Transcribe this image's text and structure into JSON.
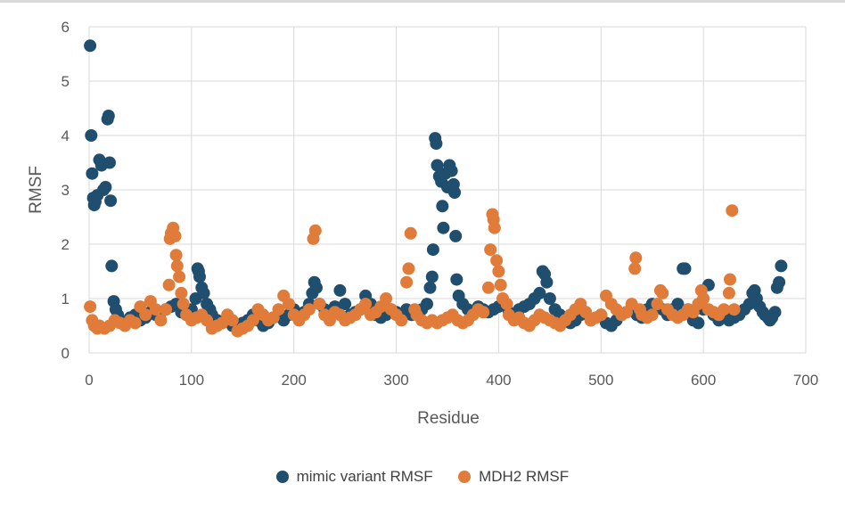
{
  "chart_data": {
    "type": "scatter",
    "title": "",
    "xlabel": "Residue",
    "ylabel": "RMSF",
    "xlim": [
      0,
      700
    ],
    "ylim": [
      0,
      6
    ],
    "xticks": [
      0,
      100,
      200,
      300,
      400,
      500,
      600,
      700
    ],
    "yticks": [
      0,
      1,
      2,
      3,
      4,
      5,
      6
    ],
    "grid": true,
    "legend_position": "bottom",
    "series": [
      {
        "name": "mimic variant RMSF",
        "color": "#1f4e6e",
        "points": [
          [
            1,
            5.65
          ],
          [
            2,
            4.0
          ],
          [
            3,
            3.3
          ],
          [
            4,
            2.85
          ],
          [
            5,
            2.72
          ],
          [
            6,
            2.78
          ],
          [
            8,
            2.9
          ],
          [
            10,
            3.55
          ],
          [
            12,
            3.45
          ],
          [
            14,
            3.0
          ],
          [
            16,
            3.05
          ],
          [
            18,
            4.3
          ],
          [
            19,
            4.36
          ],
          [
            20,
            3.5
          ],
          [
            21,
            2.8
          ],
          [
            22,
            1.6
          ],
          [
            24,
            0.95
          ],
          [
            26,
            0.8
          ],
          [
            28,
            0.7
          ],
          [
            30,
            0.6
          ],
          [
            35,
            0.55
          ],
          [
            40,
            0.65
          ],
          [
            45,
            0.7
          ],
          [
            50,
            0.6
          ],
          [
            55,
            0.65
          ],
          [
            60,
            0.75
          ],
          [
            65,
            0.7
          ],
          [
            70,
            0.75
          ],
          [
            75,
            0.8
          ],
          [
            80,
            0.85
          ],
          [
            85,
            0.9
          ],
          [
            90,
            0.75
          ],
          [
            95,
            0.7
          ],
          [
            100,
            0.8
          ],
          [
            104,
            1.0
          ],
          [
            106,
            1.55
          ],
          [
            107,
            1.5
          ],
          [
            108,
            1.4
          ],
          [
            110,
            1.2
          ],
          [
            112,
            1.1
          ],
          [
            115,
            0.9
          ],
          [
            118,
            0.8
          ],
          [
            120,
            0.7
          ],
          [
            125,
            0.6
          ],
          [
            130,
            0.55
          ],
          [
            135,
            0.6
          ],
          [
            140,
            0.5
          ],
          [
            145,
            0.45
          ],
          [
            150,
            0.55
          ],
          [
            155,
            0.6
          ],
          [
            160,
            0.7
          ],
          [
            165,
            0.6
          ],
          [
            170,
            0.5
          ],
          [
            175,
            0.55
          ],
          [
            180,
            0.65
          ],
          [
            185,
            0.7
          ],
          [
            190,
            0.6
          ],
          [
            195,
            0.7
          ],
          [
            200,
            0.8
          ],
          [
            205,
            0.7
          ],
          [
            210,
            0.75
          ],
          [
            215,
            0.9
          ],
          [
            218,
            1.1
          ],
          [
            220,
            1.3
          ],
          [
            222,
            1.2
          ],
          [
            225,
            0.9
          ],
          [
            230,
            0.8
          ],
          [
            235,
            0.7
          ],
          [
            240,
            0.85
          ],
          [
            245,
            1.15
          ],
          [
            250,
            0.9
          ],
          [
            255,
            0.7
          ],
          [
            260,
            0.75
          ],
          [
            265,
            0.8
          ],
          [
            270,
            1.05
          ],
          [
            275,
            0.9
          ],
          [
            280,
            0.7
          ],
          [
            285,
            0.65
          ],
          [
            290,
            0.7
          ],
          [
            295,
            0.8
          ],
          [
            300,
            0.75
          ],
          [
            305,
            0.7
          ],
          [
            310,
            0.8
          ],
          [
            315,
            0.7
          ],
          [
            320,
            0.75
          ],
          [
            325,
            0.8
          ],
          [
            330,
            0.9
          ],
          [
            333,
            1.2
          ],
          [
            335,
            1.4
          ],
          [
            336,
            1.9
          ],
          [
            338,
            3.95
          ],
          [
            339,
            3.85
          ],
          [
            340,
            3.45
          ],
          [
            342,
            3.25
          ],
          [
            344,
            3.15
          ],
          [
            345,
            2.7
          ],
          [
            346,
            2.3
          ],
          [
            348,
            3.3
          ],
          [
            350,
            3.05
          ],
          [
            352,
            3.45
          ],
          [
            354,
            3.35
          ],
          [
            356,
            3.1
          ],
          [
            357,
            2.95
          ],
          [
            358,
            2.15
          ],
          [
            359,
            1.35
          ],
          [
            361,
            1.05
          ],
          [
            365,
            0.9
          ],
          [
            370,
            0.8
          ],
          [
            375,
            0.75
          ],
          [
            380,
            0.85
          ],
          [
            385,
            0.8
          ],
          [
            390,
            0.75
          ],
          [
            395,
            0.8
          ],
          [
            400,
            0.85
          ],
          [
            405,
            0.9
          ],
          [
            410,
            0.75
          ],
          [
            415,
            0.7
          ],
          [
            420,
            0.8
          ],
          [
            425,
            0.85
          ],
          [
            430,
            0.9
          ],
          [
            435,
            1.0
          ],
          [
            440,
            1.1
          ],
          [
            443,
            1.5
          ],
          [
            445,
            1.45
          ],
          [
            447,
            1.3
          ],
          [
            450,
            1.0
          ],
          [
            455,
            0.8
          ],
          [
            460,
            0.7
          ],
          [
            465,
            0.6
          ],
          [
            470,
            0.55
          ],
          [
            475,
            0.6
          ],
          [
            480,
            0.7
          ],
          [
            485,
            0.75
          ],
          [
            490,
            0.6
          ],
          [
            495,
            0.65
          ],
          [
            500,
            0.7
          ],
          [
            505,
            0.55
          ],
          [
            510,
            0.5
          ],
          [
            515,
            0.6
          ],
          [
            520,
            0.7
          ],
          [
            525,
            0.75
          ],
          [
            530,
            0.8
          ],
          [
            535,
            0.7
          ],
          [
            540,
            0.65
          ],
          [
            545,
            0.8
          ],
          [
            550,
            0.9
          ],
          [
            555,
            0.85
          ],
          [
            560,
            0.8
          ],
          [
            565,
            0.7
          ],
          [
            570,
            0.8
          ],
          [
            575,
            0.9
          ],
          [
            580,
            1.55
          ],
          [
            582,
            1.55
          ],
          [
            585,
            0.8
          ],
          [
            590,
            0.6
          ],
          [
            595,
            0.55
          ],
          [
            600,
            0.8
          ],
          [
            605,
            1.25
          ],
          [
            610,
            0.7
          ],
          [
            615,
            0.6
          ],
          [
            620,
            0.75
          ],
          [
            625,
            0.6
          ],
          [
            630,
            0.65
          ],
          [
            635,
            0.7
          ],
          [
            640,
            0.8
          ],
          [
            645,
            0.9
          ],
          [
            648,
            1.1
          ],
          [
            650,
            1.15
          ],
          [
            652,
            1.0
          ],
          [
            655,
            0.85
          ],
          [
            658,
            0.75
          ],
          [
            660,
            0.7
          ],
          [
            663,
            0.65
          ],
          [
            665,
            0.6
          ],
          [
            667,
            0.65
          ],
          [
            670,
            0.75
          ],
          [
            672,
            1.2
          ],
          [
            674,
            1.3
          ],
          [
            676,
            1.6
          ]
        ]
      },
      {
        "name": "MDH2 RMSF",
        "color": "#e07b39",
        "points": [
          [
            1,
            0.85
          ],
          [
            3,
            0.6
          ],
          [
            5,
            0.5
          ],
          [
            8,
            0.45
          ],
          [
            10,
            0.5
          ],
          [
            15,
            0.45
          ],
          [
            20,
            0.5
          ],
          [
            25,
            0.6
          ],
          [
            30,
            0.55
          ],
          [
            35,
            0.5
          ],
          [
            40,
            0.6
          ],
          [
            45,
            0.55
          ],
          [
            50,
            0.85
          ],
          [
            55,
            0.7
          ],
          [
            60,
            0.95
          ],
          [
            65,
            0.8
          ],
          [
            70,
            0.6
          ],
          [
            75,
            0.8
          ],
          [
            78,
            1.25
          ],
          [
            79,
            2.1
          ],
          [
            80,
            2.2
          ],
          [
            82,
            2.3
          ],
          [
            84,
            2.15
          ],
          [
            85,
            1.8
          ],
          [
            86,
            1.6
          ],
          [
            88,
            1.4
          ],
          [
            90,
            1.1
          ],
          [
            92,
            0.9
          ],
          [
            95,
            0.7
          ],
          [
            100,
            0.6
          ],
          [
            105,
            0.65
          ],
          [
            110,
            0.7
          ],
          [
            115,
            0.6
          ],
          [
            120,
            0.45
          ],
          [
            125,
            0.5
          ],
          [
            130,
            0.55
          ],
          [
            135,
            0.7
          ],
          [
            140,
            0.6
          ],
          [
            145,
            0.4
          ],
          [
            150,
            0.45
          ],
          [
            155,
            0.5
          ],
          [
            160,
            0.6
          ],
          [
            165,
            0.8
          ],
          [
            170,
            0.7
          ],
          [
            175,
            0.6
          ],
          [
            180,
            0.65
          ],
          [
            185,
            0.8
          ],
          [
            190,
            1.05
          ],
          [
            195,
            0.9
          ],
          [
            200,
            0.7
          ],
          [
            205,
            0.6
          ],
          [
            210,
            0.7
          ],
          [
            215,
            0.8
          ],
          [
            219,
            2.1
          ],
          [
            221,
            2.25
          ],
          [
            225,
            0.9
          ],
          [
            230,
            0.7
          ],
          [
            235,
            0.6
          ],
          [
            240,
            0.75
          ],
          [
            245,
            0.7
          ],
          [
            250,
            0.6
          ],
          [
            255,
            0.65
          ],
          [
            260,
            0.7
          ],
          [
            265,
            0.8
          ],
          [
            270,
            0.9
          ],
          [
            275,
            0.7
          ],
          [
            280,
            0.75
          ],
          [
            285,
            0.85
          ],
          [
            290,
            1.0
          ],
          [
            295,
            0.8
          ],
          [
            300,
            0.7
          ],
          [
            305,
            0.6
          ],
          [
            310,
            1.3
          ],
          [
            312,
            1.55
          ],
          [
            314,
            2.2
          ],
          [
            318,
            0.8
          ],
          [
            320,
            0.7
          ],
          [
            325,
            0.6
          ],
          [
            330,
            0.55
          ],
          [
            335,
            0.6
          ],
          [
            340,
            0.55
          ],
          [
            345,
            0.6
          ],
          [
            350,
            0.65
          ],
          [
            355,
            0.7
          ],
          [
            360,
            0.6
          ],
          [
            365,
            0.55
          ],
          [
            370,
            0.6
          ],
          [
            375,
            0.7
          ],
          [
            380,
            0.8
          ],
          [
            385,
            0.75
          ],
          [
            390,
            1.2
          ],
          [
            392,
            1.9
          ],
          [
            394,
            2.55
          ],
          [
            395,
            2.45
          ],
          [
            396,
            2.3
          ],
          [
            398,
            1.7
          ],
          [
            400,
            1.5
          ],
          [
            402,
            1.25
          ],
          [
            404,
            1.0
          ],
          [
            408,
            0.9
          ],
          [
            410,
            0.7
          ],
          [
            415,
            0.6
          ],
          [
            420,
            0.65
          ],
          [
            425,
            0.55
          ],
          [
            430,
            0.5
          ],
          [
            435,
            0.6
          ],
          [
            440,
            0.7
          ],
          [
            445,
            0.65
          ],
          [
            450,
            0.6
          ],
          [
            455,
            0.55
          ],
          [
            460,
            0.5
          ],
          [
            465,
            0.6
          ],
          [
            470,
            0.7
          ],
          [
            475,
            0.8
          ],
          [
            480,
            0.9
          ],
          [
            485,
            0.75
          ],
          [
            490,
            0.6
          ],
          [
            495,
            0.65
          ],
          [
            500,
            0.7
          ],
          [
            505,
            1.05
          ],
          [
            510,
            0.9
          ],
          [
            515,
            0.8
          ],
          [
            520,
            0.7
          ],
          [
            525,
            0.75
          ],
          [
            530,
            0.9
          ],
          [
            533,
            1.55
          ],
          [
            534,
            1.75
          ],
          [
            538,
            0.8
          ],
          [
            540,
            0.7
          ],
          [
            545,
            0.65
          ],
          [
            550,
            0.7
          ],
          [
            555,
            0.9
          ],
          [
            558,
            1.15
          ],
          [
            560,
            1.1
          ],
          [
            565,
            0.8
          ],
          [
            570,
            0.7
          ],
          [
            575,
            0.65
          ],
          [
            580,
            0.7
          ],
          [
            585,
            0.8
          ],
          [
            590,
            0.75
          ],
          [
            595,
            0.9
          ],
          [
            598,
            1.15
          ],
          [
            600,
            1.0
          ],
          [
            605,
            0.8
          ],
          [
            610,
            0.75
          ],
          [
            615,
            0.7
          ],
          [
            620,
            0.8
          ],
          [
            625,
            1.1
          ],
          [
            626,
            1.35
          ],
          [
            628,
            2.62
          ],
          [
            630,
            0.8
          ]
        ]
      }
    ]
  }
}
